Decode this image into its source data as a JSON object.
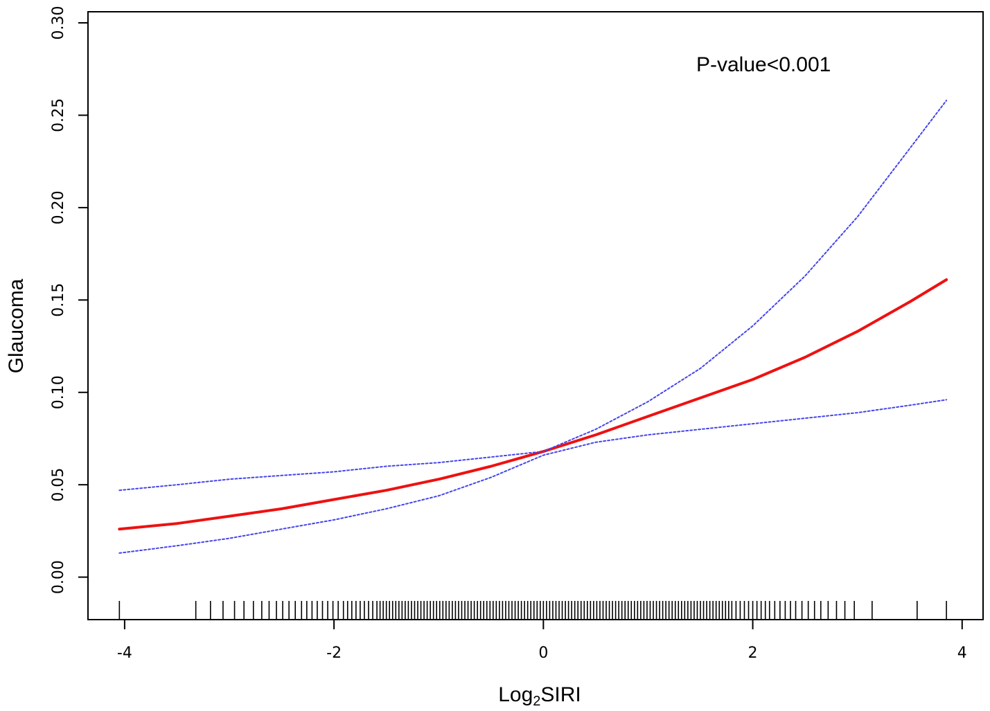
{
  "chart_data": {
    "type": "line",
    "annotation": "P-value<0.001",
    "xlabel": {
      "prefix": "Log",
      "subscript": "2",
      "suffix": "SIRI"
    },
    "ylabel": "Glaucoma",
    "xlim": [
      -4.35,
      4.2
    ],
    "ylim": [
      -0.023,
      0.306
    ],
    "xticks": [
      "-4",
      "-2",
      "0",
      "2",
      "4"
    ],
    "yticks": [
      "0.00",
      "0.05",
      "0.10",
      "0.15",
      "0.20",
      "0.25",
      "0.30"
    ],
    "grid": false,
    "colors": {
      "estimate": "#ee1111",
      "ci": "#4444ee",
      "rug": "#000000"
    },
    "series": [
      {
        "role": "estimate",
        "style": "solid",
        "x": [
          -4.05,
          -3.5,
          -3.0,
          -2.5,
          -2.0,
          -1.5,
          -1.0,
          -0.5,
          0.0,
          0.5,
          1.0,
          1.5,
          2.0,
          2.5,
          3.0,
          3.5,
          3.85
        ],
        "y": [
          0.026,
          0.029,
          0.033,
          0.037,
          0.042,
          0.047,
          0.053,
          0.06,
          0.068,
          0.077,
          0.087,
          0.097,
          0.107,
          0.119,
          0.133,
          0.149,
          0.161
        ]
      },
      {
        "role": "ci_upper",
        "style": "dotted",
        "x": [
          -4.05,
          -3.5,
          -3.0,
          -2.5,
          -2.0,
          -1.5,
          -1.0,
          -0.5,
          0.0,
          0.5,
          1.0,
          1.5,
          2.0,
          2.5,
          3.0,
          3.5,
          3.85
        ],
        "y": [
          0.047,
          0.05,
          0.053,
          0.055,
          0.057,
          0.06,
          0.062,
          0.065,
          0.068,
          0.08,
          0.095,
          0.113,
          0.136,
          0.163,
          0.195,
          0.232,
          0.258
        ]
      },
      {
        "role": "ci_lower",
        "style": "dotted",
        "x": [
          -4.05,
          -3.5,
          -3.0,
          -2.5,
          -2.0,
          -1.5,
          -1.0,
          -0.5,
          0.0,
          0.5,
          1.0,
          1.5,
          2.0,
          2.5,
          3.0,
          3.5,
          3.85
        ],
        "y": [
          0.013,
          0.017,
          0.021,
          0.026,
          0.031,
          0.037,
          0.044,
          0.054,
          0.066,
          0.073,
          0.077,
          0.08,
          0.083,
          0.086,
          0.089,
          0.093,
          0.096
        ]
      }
    ],
    "rug": [
      -4.05,
      -3.32,
      -3.18,
      -3.06,
      -2.95,
      -2.86,
      -2.77,
      -2.69,
      -2.62,
      -2.55,
      -2.49,
      -2.43,
      -2.37,
      -2.31,
      -2.26,
      -2.21,
      -2.16,
      -2.11,
      -2.06,
      -2.01,
      -1.96,
      -1.91,
      -1.87,
      -1.83,
      -1.79,
      -1.75,
      -1.71,
      -1.67,
      -1.63,
      -1.59,
      -1.56,
      -1.53,
      -1.5,
      -1.47,
      -1.44,
      -1.41,
      -1.38,
      -1.35,
      -1.32,
      -1.29,
      -1.26,
      -1.23,
      -1.2,
      -1.17,
      -1.14,
      -1.11,
      -1.08,
      -1.05,
      -1.02,
      -0.99,
      -0.96,
      -0.93,
      -0.9,
      -0.87,
      -0.84,
      -0.81,
      -0.78,
      -0.75,
      -0.72,
      -0.69,
      -0.66,
      -0.63,
      -0.6,
      -0.57,
      -0.54,
      -0.51,
      -0.48,
      -0.45,
      -0.42,
      -0.39,
      -0.36,
      -0.33,
      -0.3,
      -0.27,
      -0.24,
      -0.21,
      -0.18,
      -0.15,
      -0.12,
      -0.09,
      -0.06,
      -0.03,
      0.0,
      0.03,
      0.06,
      0.09,
      0.12,
      0.15,
      0.18,
      0.21,
      0.24,
      0.27,
      0.3,
      0.33,
      0.36,
      0.39,
      0.42,
      0.45,
      0.48,
      0.51,
      0.54,
      0.57,
      0.6,
      0.63,
      0.66,
      0.69,
      0.72,
      0.75,
      0.78,
      0.81,
      0.84,
      0.87,
      0.9,
      0.93,
      0.96,
      0.99,
      1.02,
      1.05,
      1.08,
      1.11,
      1.14,
      1.17,
      1.2,
      1.23,
      1.26,
      1.29,
      1.32,
      1.35,
      1.38,
      1.41,
      1.44,
      1.47,
      1.5,
      1.53,
      1.56,
      1.59,
      1.62,
      1.65,
      1.68,
      1.71,
      1.74,
      1.77,
      1.8,
      1.84,
      1.88,
      1.92,
      1.96,
      2.0,
      2.04,
      2.08,
      2.12,
      2.16,
      2.21,
      2.26,
      2.31,
      2.36,
      2.41,
      2.47,
      2.53,
      2.59,
      2.65,
      2.72,
      2.8,
      2.88,
      2.97,
      3.14,
      3.57,
      3.85
    ]
  }
}
